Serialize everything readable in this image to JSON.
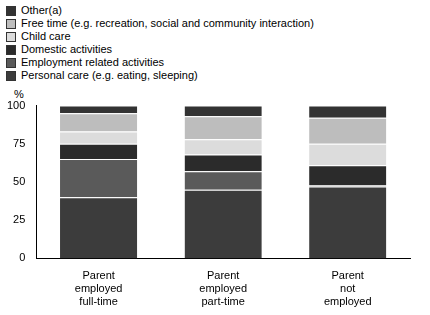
{
  "chart_data": {
    "type": "bar",
    "stacked": true,
    "grid": false,
    "legend": "top-left",
    "y_label": "%",
    "categories": [
      "Parent employed full-time",
      "Parent employed part-time",
      "Parent not employed"
    ],
    "ylim": [
      0,
      100
    ],
    "yticks": [
      0,
      25,
      50,
      75,
      100
    ],
    "series": [
      {
        "name": "Personal care (e.g. eating, sleeping)",
        "color": "#3c3c3c",
        "values": [
          40,
          45,
          47
        ]
      },
      {
        "name": "Employment related activities",
        "color": "#5a5a5a",
        "values": [
          25,
          12,
          1
        ]
      },
      {
        "name": "Domestic activities",
        "color": "#2b2b2b",
        "values": [
          10,
          11,
          13
        ]
      },
      {
        "name": "Child care",
        "color": "#dcdcdc",
        "values": [
          8,
          10,
          14
        ]
      },
      {
        "name": "Free time (e.g. recreation, social and community interaction)",
        "color": "#bdbdbd",
        "values": [
          12,
          15,
          17
        ]
      },
      {
        "name": "Other(a)",
        "color": "#333333",
        "values": [
          5,
          7,
          8
        ]
      }
    ]
  }
}
